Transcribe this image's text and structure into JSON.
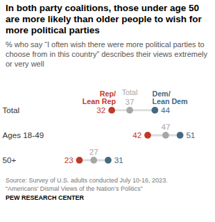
{
  "chart_data": {
    "type": "dot",
    "title": "In both party coalitions, those under age 50 are more likely than older people to wish for more political parties",
    "subtitle": "% who say “I often wish there were more political parties to choose from in this country” describes their views extremely or very well",
    "categories": [
      "Total",
      "Ages 18-49",
      "50+"
    ],
    "series": [
      {
        "name": "Rep/\nLean Rep",
        "color": "#bf3927",
        "values": [
          32,
          42,
          23
        ]
      },
      {
        "name": "Total",
        "color": "#a6a6a6",
        "values": [
          37,
          47,
          27
        ]
      },
      {
        "name": "Dem/\nLean Dem",
        "color": "#436983",
        "values": [
          44,
          51,
          31
        ]
      }
    ],
    "data_labels": true,
    "tick_labels": "y",
    "source": [
      "Source: Survey of U.S. adults conducted July 10-16, 2023.",
      "“Americans’ Dismal Views of the Nation’s Politics”"
    ],
    "credit": "PEW RESEARCH CENTER"
  }
}
